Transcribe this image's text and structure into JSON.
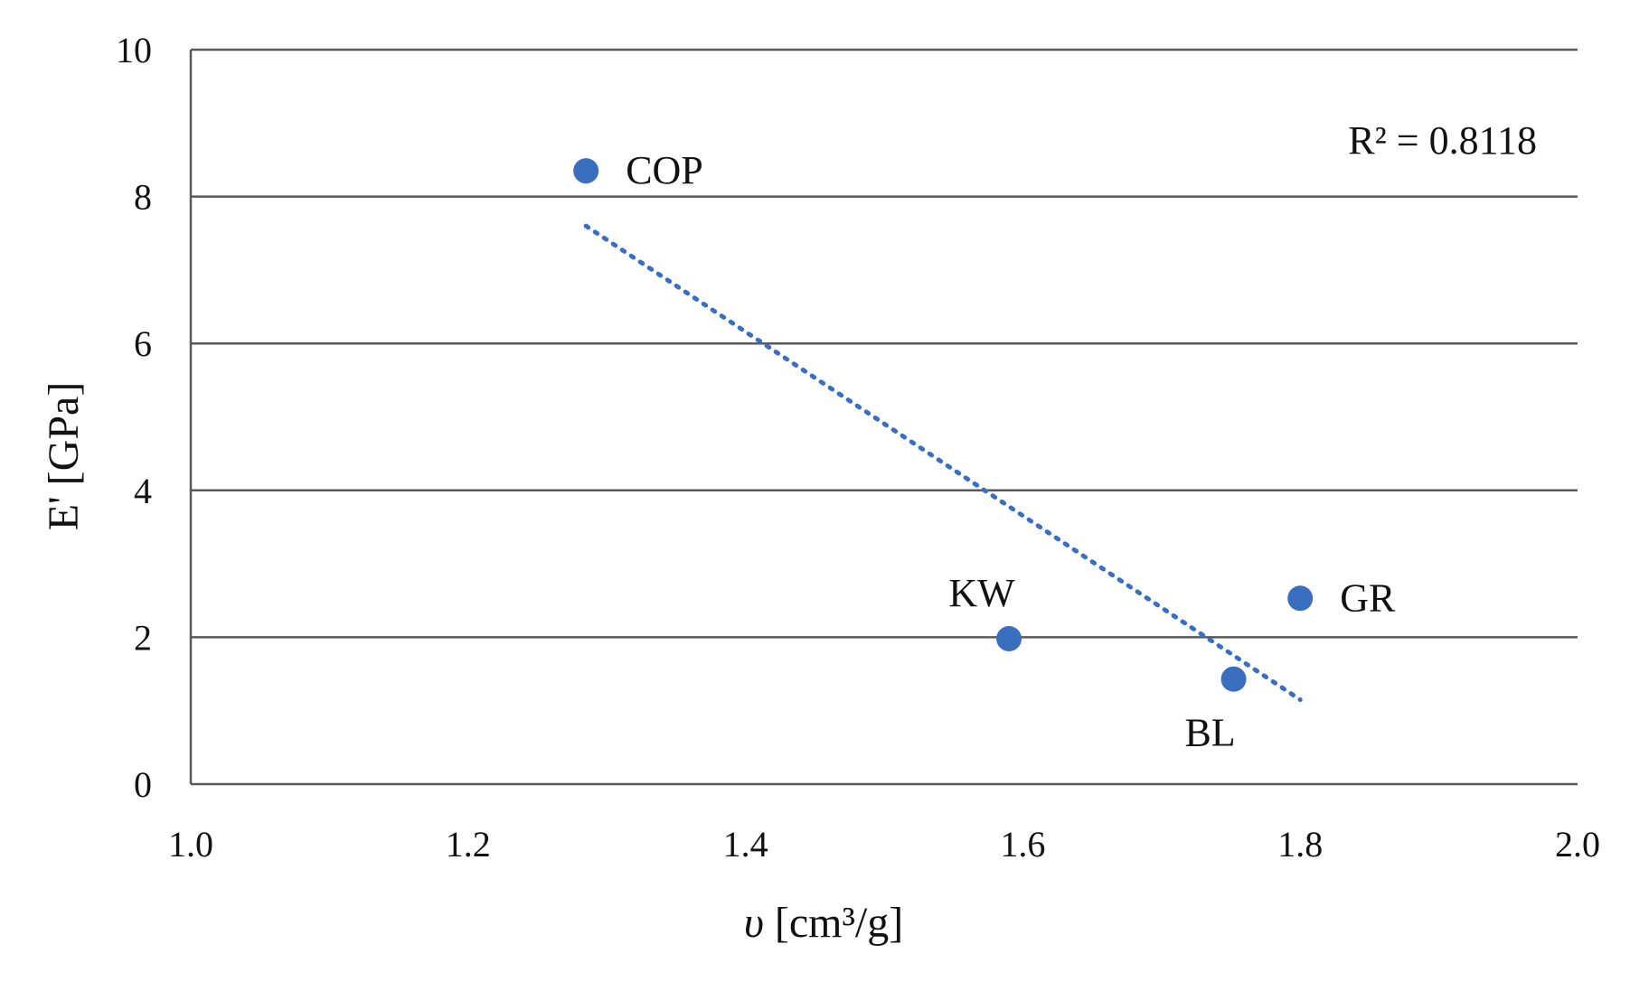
{
  "chart_data": {
    "type": "scatter",
    "title": "",
    "xlabel_symbol": "υ",
    "xlabel_unit": "[cm³/g]",
    "xlabel": "υ [cm³/g]",
    "ylabel": "E' [GPa]",
    "xlim": [
      1.0,
      2.0
    ],
    "ylim": [
      0,
      10
    ],
    "x_ticks": [
      1.0,
      1.2,
      1.4,
      1.6,
      1.8,
      2.0
    ],
    "x_tick_labels": [
      "1.0",
      "1.2",
      "1.4",
      "1.6",
      "1.8",
      "2.0"
    ],
    "y_ticks": [
      0,
      2,
      4,
      6,
      8,
      10
    ],
    "y_tick_labels": [
      "0",
      "2",
      "4",
      "6",
      "8",
      "10"
    ],
    "grid": "horizontal",
    "series": [
      {
        "name": "samples",
        "points": [
          {
            "label": "COP",
            "x": 1.285,
            "y": 8.35,
            "label_position": "right"
          },
          {
            "label": "KW",
            "x": 1.59,
            "y": 1.98,
            "label_position": "above"
          },
          {
            "label": "BL",
            "x": 1.752,
            "y": 1.43,
            "label_position": "below"
          },
          {
            "label": "GR",
            "x": 1.8,
            "y": 2.53,
            "label_position": "right"
          }
        ]
      }
    ],
    "trendline": {
      "type": "linear",
      "x_start": 1.285,
      "y_start": 7.6,
      "x_end": 1.8,
      "y_end": 1.15,
      "style": "dotted"
    },
    "annotation": {
      "text": "R² = 0.8118",
      "placement": "top-right"
    },
    "colors": {
      "point": "#3A6FC0",
      "trendline": "#3A6FC0",
      "grid": "#595959"
    }
  }
}
